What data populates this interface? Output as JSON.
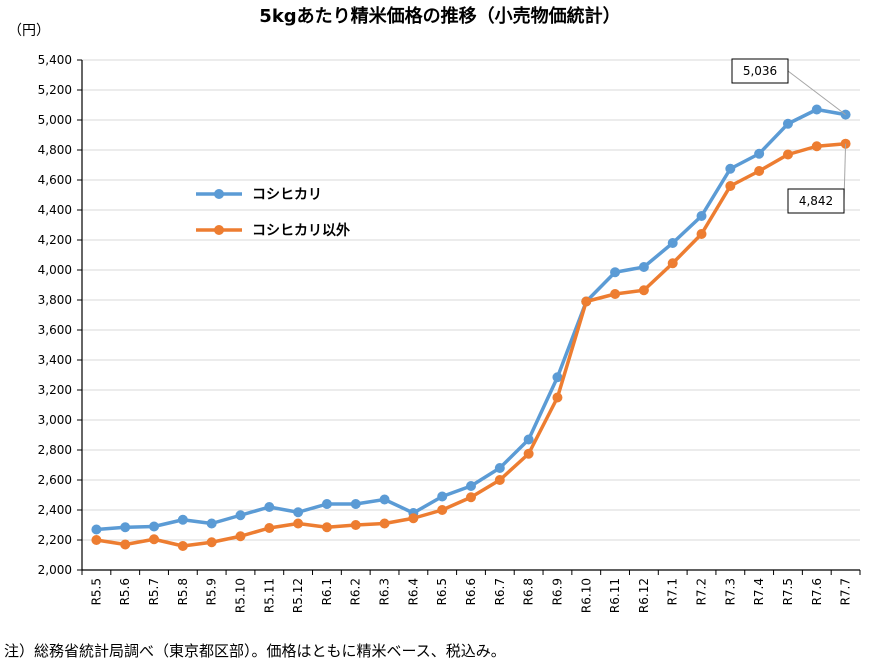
{
  "chart_data": {
    "type": "line",
    "title": "5kgあたり精米価格の推移（小売物価統計）",
    "ylabel": "（円）",
    "xlabel": "",
    "ylim": [
      2000,
      5400
    ],
    "yticks": [
      2000,
      2200,
      2400,
      2600,
      2800,
      3000,
      3200,
      3400,
      3600,
      3800,
      4000,
      4200,
      4400,
      4600,
      4800,
      5000,
      5200,
      5400
    ],
    "ytick_labels": [
      "2,000",
      "2,200",
      "2,400",
      "2,600",
      "2,800",
      "3,000",
      "3,200",
      "3,400",
      "3,600",
      "3,800",
      "4,000",
      "4,200",
      "4,400",
      "4,600",
      "4,800",
      "5,000",
      "5,200",
      "5,400"
    ],
    "categories": [
      "R5.5",
      "R5.6",
      "R5.7",
      "R5.8",
      "R5.9",
      "R5.10",
      "R5.11",
      "R5.12",
      "R6.1",
      "R6.2",
      "R6.3",
      "R6.4",
      "R6.5",
      "R6.6",
      "R6.7",
      "R6.8",
      "R6.9",
      "R6.10",
      "R6.11",
      "R6.12",
      "R7.1",
      "R7.2",
      "R7.3",
      "R7.4",
      "R7.5",
      "R7.6",
      "R7.7"
    ],
    "grid": true,
    "legend_position": "left-middle",
    "series": [
      {
        "name": "コシヒカリ",
        "color": "#5B9BD5",
        "values": [
          2270,
          2285,
          2290,
          2335,
          2310,
          2365,
          2420,
          2385,
          2440,
          2440,
          2470,
          2380,
          2490,
          2560,
          2680,
          2870,
          3285,
          3790,
          3985,
          4020,
          4180,
          4360,
          4675,
          4775,
          4975,
          5070,
          5036
        ]
      },
      {
        "name": "コシヒカリ以外",
        "color": "#ED7D31",
        "values": [
          2200,
          2170,
          2205,
          2160,
          2185,
          2225,
          2280,
          2310,
          2285,
          2300,
          2310,
          2345,
          2400,
          2485,
          2600,
          2775,
          3150,
          3790,
          3840,
          3865,
          4045,
          4240,
          4560,
          4660,
          4770,
          4825,
          4842
        ]
      }
    ],
    "annotations": [
      {
        "text": "5,036",
        "series": 0,
        "index": 26
      },
      {
        "text": "4,842",
        "series": 1,
        "index": 26
      }
    ]
  },
  "footnote": "注）総務省統計局調べ（東京都区部）。価格はともに精米ベース、税込み。"
}
